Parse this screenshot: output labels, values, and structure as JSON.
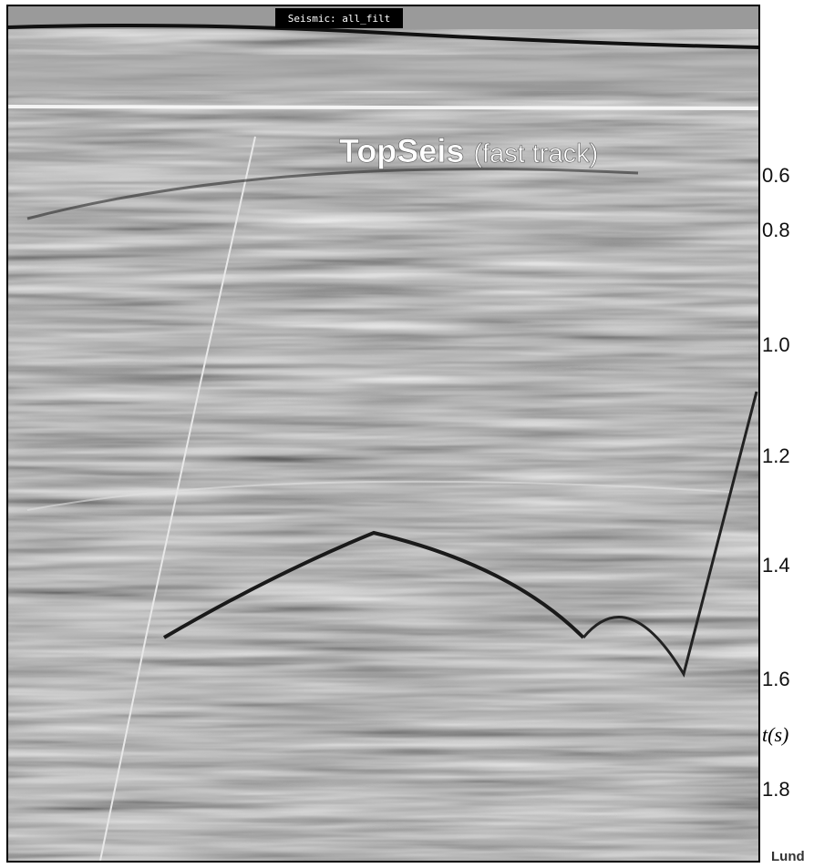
{
  "panel": {
    "label": "Seismic: all_filt",
    "title": "TopSeis",
    "subtitle": "(fast track)"
  },
  "axis": {
    "ticks": [
      "0.6",
      "0.8",
      "1.0",
      "1.2",
      "1.4",
      "1.6",
      "1.8"
    ],
    "label": "t(s)"
  },
  "footer": "Lund"
}
